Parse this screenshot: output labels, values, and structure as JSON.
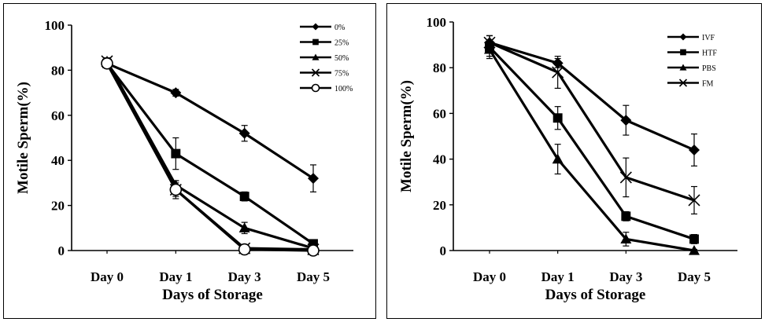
{
  "chart_data": [
    {
      "type": "line",
      "categories": [
        "Day 0",
        "Day 1",
        "Day 3",
        "Day 5"
      ],
      "xlabel": "Days of Storage",
      "ylabel": "Motile Sperm(%)",
      "ylim": [
        0,
        100
      ],
      "yticks": [
        "0",
        "20",
        "40",
        "60",
        "80",
        "100"
      ],
      "legend_position": "top-right",
      "series": [
        {
          "name": "0%",
          "marker": "diamond",
          "values": [
            83,
            70,
            52,
            32
          ],
          "errors": [
            1.5,
            1.5,
            3.5,
            6
          ]
        },
        {
          "name": "25%",
          "marker": "square",
          "values": [
            83,
            43,
            24,
            3
          ],
          "errors": [
            1.5,
            7,
            2,
            1.5
          ]
        },
        {
          "name": "50%",
          "marker": "triangle",
          "values": [
            84,
            29,
            10,
            1
          ],
          "errors": [
            1.5,
            2,
            2.5,
            1
          ]
        },
        {
          "name": "75%",
          "marker": "x",
          "values": [
            84,
            27,
            1,
            0.5
          ],
          "errors": [
            1.5,
            4,
            1,
            0.5
          ]
        },
        {
          "name": "100%",
          "marker": "circle",
          "values": [
            83,
            27,
            0.5,
            0
          ],
          "errors": [
            1.5,
            3,
            0.5,
            0.5
          ]
        }
      ]
    },
    {
      "type": "line",
      "categories": [
        "Day 0",
        "Day 1",
        "Day 3",
        "Day 5"
      ],
      "xlabel": "Days of Storage",
      "ylabel": "Motile Sperm(%)",
      "ylim": [
        0,
        100
      ],
      "yticks": [
        "0",
        "20",
        "40",
        "60",
        "80",
        "100"
      ],
      "legend_position": "top-right",
      "series": [
        {
          "name": "IVF",
          "marker": "diamond",
          "values": [
            91,
            82,
            57,
            44
          ],
          "errors": [
            3,
            2,
            6.5,
            7
          ]
        },
        {
          "name": "HTF",
          "marker": "square",
          "values": [
            89,
            58,
            15,
            5
          ],
          "errors": [
            5,
            5,
            2,
            2
          ]
        },
        {
          "name": "PBS",
          "marker": "triangle",
          "values": [
            88,
            40,
            5,
            0
          ],
          "errors": [
            3,
            6.5,
            3,
            0.5
          ]
        },
        {
          "name": "FM",
          "marker": "x",
          "values": [
            91,
            78,
            32,
            22
          ],
          "errors": [
            3,
            7,
            8.5,
            6
          ]
        }
      ]
    }
  ]
}
